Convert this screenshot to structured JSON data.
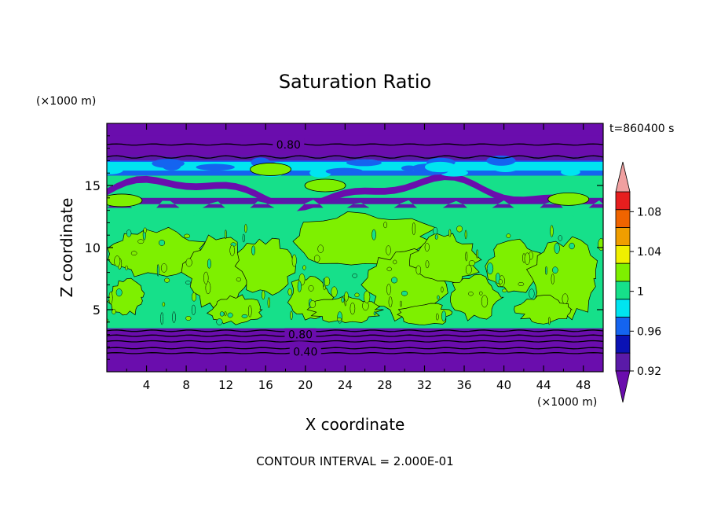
{
  "chart_data": {
    "type": "heatmap",
    "title": "Saturation Ratio",
    "xlabel": "X coordinate",
    "ylabel": "Z coordinate",
    "x_unit": "(×1000 m)",
    "y_unit": "(×1000 m)",
    "time_label": "t=860400 s",
    "footer": "CONTOUR INTERVAL = 2.000E-01",
    "xlim": [
      0,
      50
    ],
    "ylim": [
      0,
      20
    ],
    "x_ticks": [
      "4",
      "8",
      "12",
      "16",
      "20",
      "24",
      "28",
      "32",
      "36",
      "40",
      "44",
      "48"
    ],
    "y_ticks": [
      "5",
      "10",
      "15"
    ],
    "contour_labels": [
      "0.80",
      "0.80",
      "0.40"
    ],
    "colorbar": {
      "tick_labels": [
        "0.92",
        "0.96",
        "1",
        "1.04",
        "1.08"
      ],
      "levels": [
        {
          "lower": null,
          "upper": 0.92,
          "color": "#6a0dad"
        },
        {
          "lower": 0.92,
          "upper": 0.94,
          "color": "#5a1aa8"
        },
        {
          "lower": 0.94,
          "upper": 0.96,
          "color": "#0a12b4"
        },
        {
          "lower": 0.96,
          "upper": 0.98,
          "color": "#1464f0"
        },
        {
          "lower": 0.98,
          "upper": 0.99,
          "color": "#00e4f0"
        },
        {
          "lower": 0.99,
          "upper": 1.0,
          "color": "#16e08a"
        },
        {
          "lower": 1.0,
          "upper": 1.02,
          "color": "#7ef000"
        },
        {
          "lower": 1.02,
          "upper": 1.04,
          "color": "#f0f000"
        },
        {
          "lower": 1.04,
          "upper": 1.06,
          "color": "#f09e00"
        },
        {
          "lower": 1.06,
          "upper": 1.08,
          "color": "#f06400"
        },
        {
          "lower": 1.08,
          "upper": 1.1,
          "color": "#e61e1e"
        },
        {
          "lower": 1.1,
          "upper": null,
          "color": "#f0a0a0"
        }
      ]
    },
    "field_colors": {
      "purple": "#6a0dad",
      "dark_purple": "#5a1aa8",
      "dark_blue": "#0a12b4",
      "blue": "#1464f0",
      "cyan": "#00e4f0",
      "sea_green": "#16e08a",
      "lime": "#7ef000"
    }
  }
}
